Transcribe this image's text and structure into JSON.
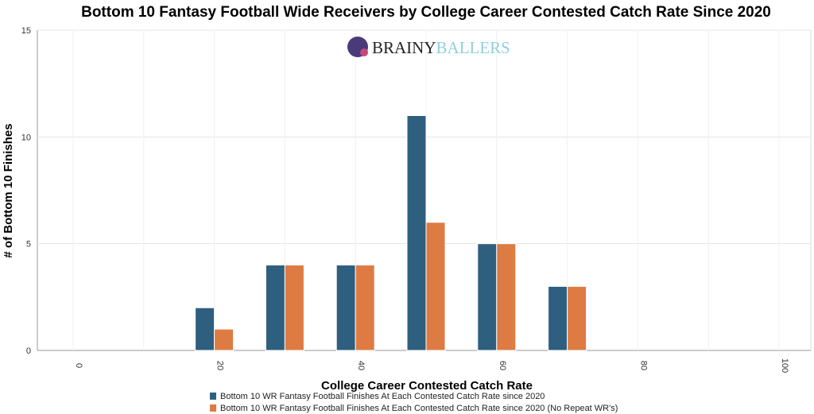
{
  "chart_data": {
    "type": "bar",
    "title": "Bottom 10 Fantasy Football Wide Receivers by College Career Contested Catch Rate Since 2020",
    "xlabel": "College Career Contested Catch Rate",
    "ylabel": "# of Bottom 10 Finishes",
    "xlim": [
      0,
      100
    ],
    "ylim": [
      0,
      15
    ],
    "xticks": [
      "0",
      "20",
      "40",
      "60",
      "80",
      "100"
    ],
    "yticks": [
      "0",
      "5",
      "10",
      "15"
    ],
    "categories": [
      20,
      30,
      40,
      50,
      60,
      70
    ],
    "series": [
      {
        "name": "Bottom 10 WR Fantasy Football Finishes At Each Contested Catch Rate since 2020",
        "color": "#2e5f7f",
        "values": [
          2,
          4,
          4,
          11,
          5,
          3
        ]
      },
      {
        "name": "Bottom 10 WR Fantasy Football Finishes At Each Contested Catch Rate since 2020 (No Repeat WR's)",
        "color": "#de7b43",
        "values": [
          1,
          4,
          4,
          6,
          5,
          3
        ]
      }
    ],
    "grid": true,
    "legend": "bottom"
  },
  "logo": {
    "text1": "BRAINY",
    "text2": "BALLERS"
  }
}
